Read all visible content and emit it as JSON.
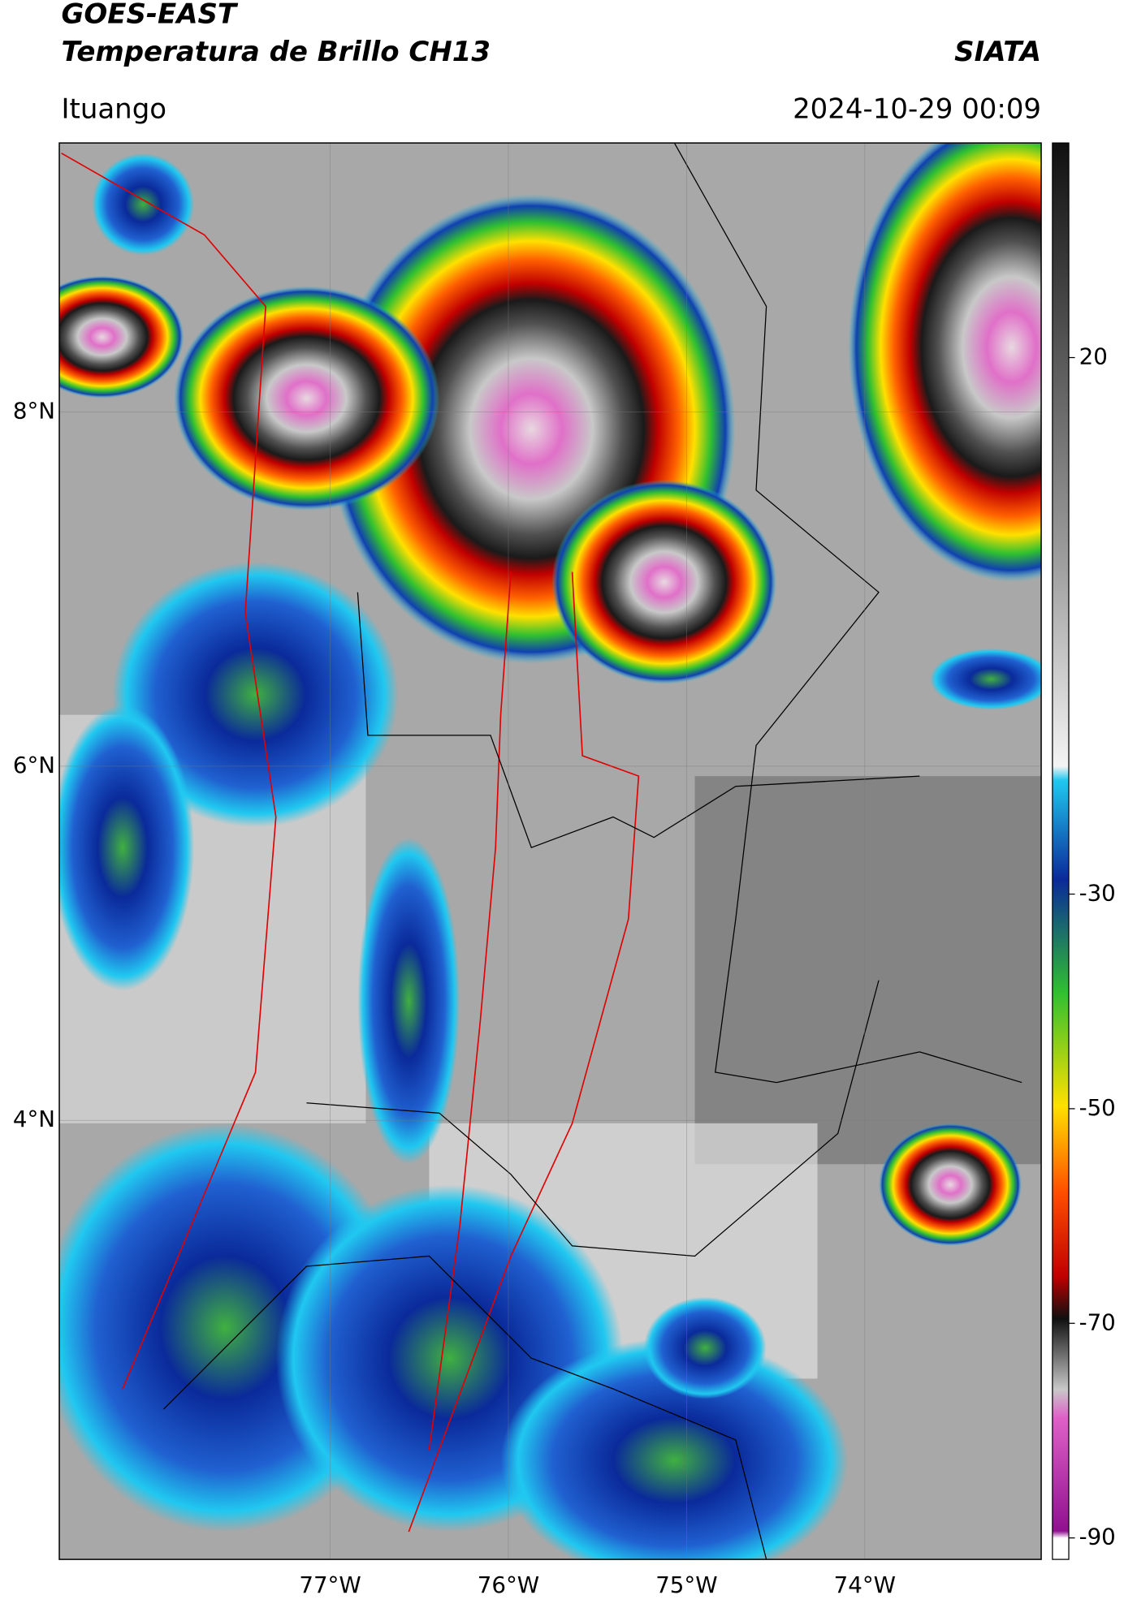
{
  "header": {
    "title": "GOES-EAST",
    "subtitle": "Temperatura de Brillo CH13",
    "brand": "SIATA",
    "location": "Ituango",
    "datetime": "2024-10-29 00:09"
  },
  "map": {
    "xlim": [
      -78.52,
      -73.01
    ],
    "ylim": [
      1.52,
      9.52
    ],
    "xticks": [
      {
        "value": -77,
        "label": "77°W"
      },
      {
        "value": -76,
        "label": "76°W"
      },
      {
        "value": -75,
        "label": "75°W"
      },
      {
        "value": -74,
        "label": "74°W"
      }
    ],
    "yticks": [
      {
        "value": 8,
        "label": "8°N"
      },
      {
        "value": 6,
        "label": "6°N"
      },
      {
        "value": 4,
        "label": "4°N"
      }
    ]
  },
  "colorbar": {
    "lim": [
      -92,
      40
    ],
    "ticks": [
      20,
      -30,
      -50,
      -70,
      -90
    ]
  }
}
